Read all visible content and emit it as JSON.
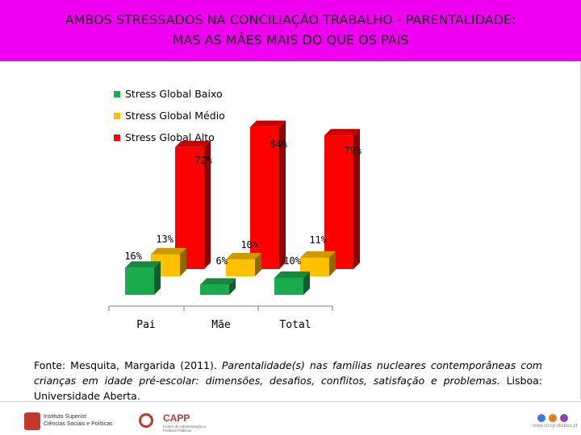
{
  "slide": {
    "title_line1": "AMBOS STRESSADOS NA CONCILIAÇÃO TRABALHO - PARENTALIDADE:",
    "title_line2": "MAS AS MÃES MAIS DO QUE OS PAIS",
    "title_bar_color": "#f000f0"
  },
  "chart_data": {
    "type": "bar",
    "categories": [
      "Pai",
      "Mãe",
      "Total"
    ],
    "series": [
      {
        "name": "Stress Global Baixo",
        "color": "#1aab4c",
        "values": [
          16,
          6,
          10
        ],
        "labels": [
          "16%",
          "6%",
          "10%"
        ]
      },
      {
        "name": "Stress Global Médio",
        "color": "#ffc000",
        "values": [
          13,
          10,
          11
        ],
        "labels": [
          "13%",
          "10%",
          "11%"
        ]
      },
      {
        "name": "Stress Global Alto",
        "color": "#ff0000",
        "values": [
          72,
          84,
          79
        ],
        "labels": [
          "72%",
          "84%",
          "79%"
        ]
      }
    ],
    "ylim": [
      0,
      100
    ],
    "grid": false,
    "legend_position": "top-left",
    "style": "3d-column"
  },
  "source": {
    "prefix": "Fonte: Mesquita, Margarida (2011). ",
    "italic": "Parentalidade(s) nas famílias nucleares contemporâneas com crianças em idade pré-escolar: dimensões, desafios, conflitos, satisfação e problemas.",
    "suffix": " Lisboa: Universidade Aberta."
  },
  "footer": {
    "logo1_line1": "Instituto Superior",
    "logo1_line2": "Ciências Sociais e Políticas",
    "logo2_name": "CAPP",
    "logo2_sub": "Centro de Administração e Políticas Públicas",
    "logo3_url": "www.iscsp.ulisboa.pt"
  }
}
